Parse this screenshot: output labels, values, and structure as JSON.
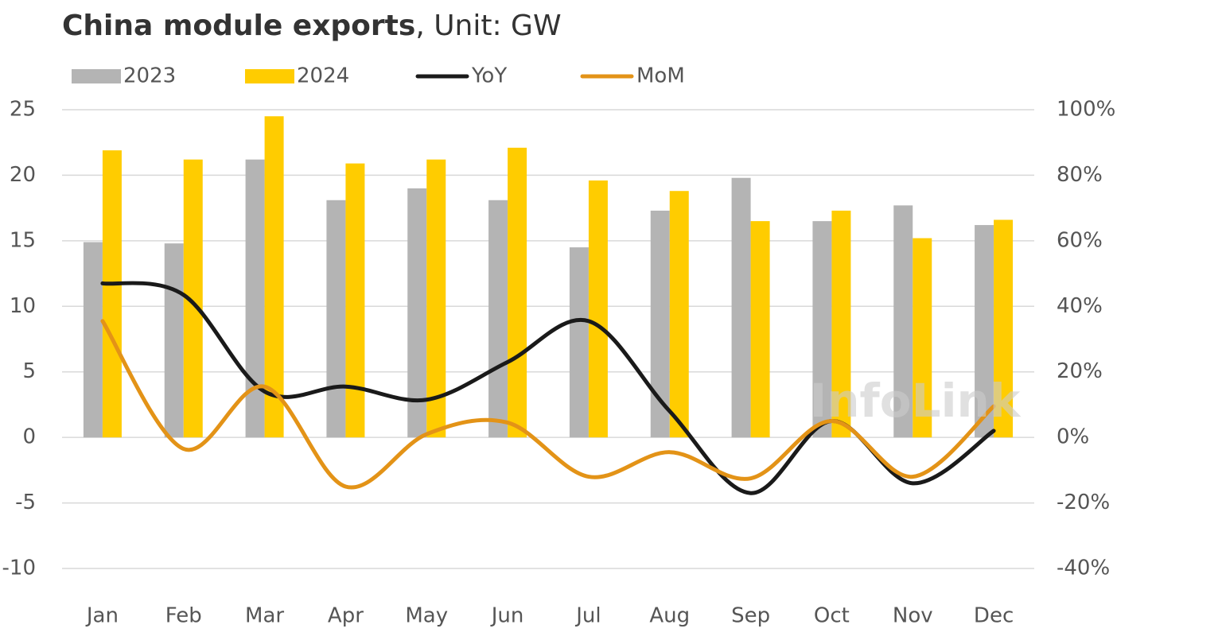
{
  "chart_data": {
    "type": "bar-line",
    "title": "China module exports",
    "subtitle": ", Unit: GW",
    "watermark": "InfoLink",
    "categories": [
      "Jan",
      "Feb",
      "Mar",
      "Apr",
      "May",
      "Jun",
      "Jul",
      "Aug",
      "Sep",
      "Oct",
      "Nov",
      "Dec"
    ],
    "series": [
      {
        "name": "2023",
        "type": "bar",
        "color": "#b4b4b4",
        "values": [
          14.9,
          14.8,
          21.2,
          18.1,
          19.0,
          18.1,
          14.5,
          17.3,
          19.8,
          16.5,
          17.7,
          16.2
        ]
      },
      {
        "name": "2024",
        "type": "bar",
        "color": "#ffcc00",
        "values": [
          21.9,
          21.2,
          24.5,
          20.9,
          21.2,
          22.1,
          19.6,
          18.8,
          16.5,
          17.3,
          15.2,
          16.6
        ]
      },
      {
        "name": "YoY",
        "type": "line",
        "axis": "y2",
        "color": "#1a1a1a",
        "values": [
          47,
          43.5,
          14,
          15.5,
          11.5,
          23,
          35.5,
          8,
          -17,
          5,
          -14,
          2
        ]
      },
      {
        "name": "MoM",
        "type": "line",
        "axis": "y2",
        "color": "#e39317",
        "values": [
          35.5,
          -3.5,
          15.5,
          -15,
          1,
          4.5,
          -12,
          -4.5,
          -12.5,
          5,
          -12,
          9.5
        ]
      }
    ],
    "ylim": [
      -10,
      25
    ],
    "yticks": [
      -10,
      -5,
      0,
      5,
      10,
      15,
      20,
      25
    ],
    "y2lim": [
      -40,
      100
    ],
    "y2ticks": [
      {
        "value": -40,
        "label": "-40%"
      },
      {
        "value": -20,
        "label": "-20%"
      },
      {
        "value": 0,
        "label": "0%"
      },
      {
        "value": 20,
        "label": "20%"
      },
      {
        "value": 40,
        "label": "40%"
      },
      {
        "value": 60,
        "label": "60%"
      },
      {
        "value": 80,
        "label": "80%"
      },
      {
        "value": 100,
        "label": "100%"
      }
    ],
    "grid": true
  }
}
